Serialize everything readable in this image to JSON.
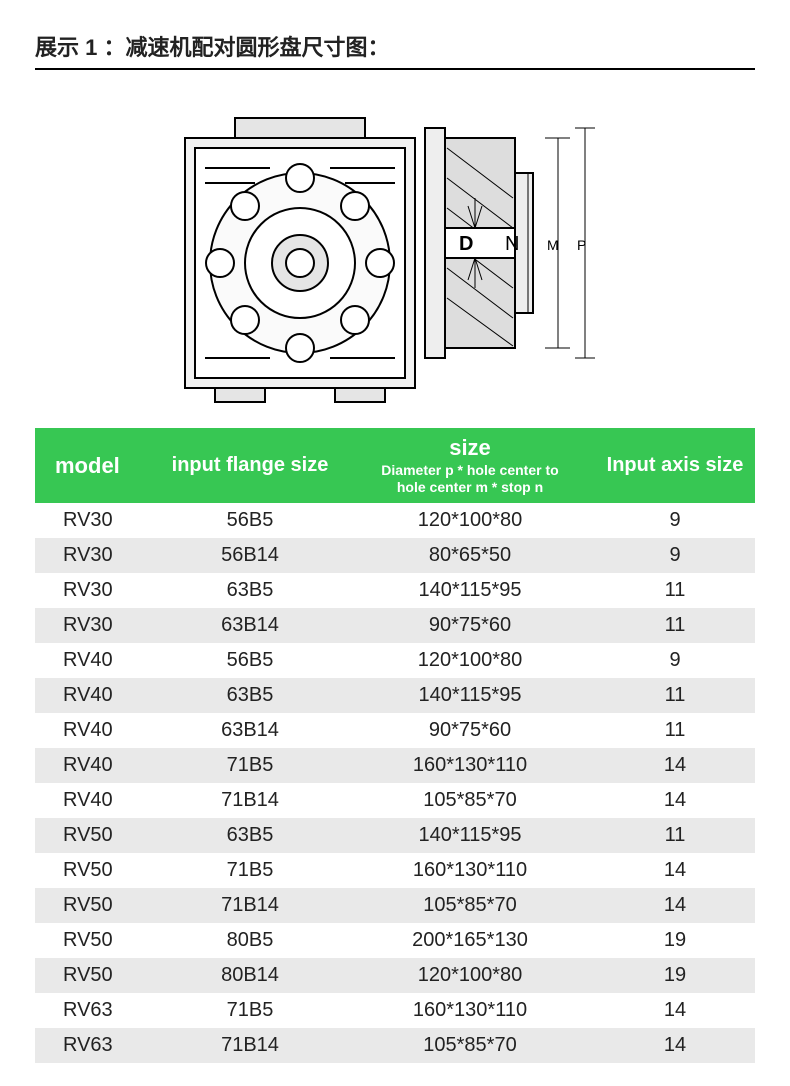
{
  "title": "展示 1 ：减速机配对圆形盘尺寸图：",
  "diagram": {
    "labels": {
      "D": "D",
      "N": "N",
      "M": "M",
      "P": "P"
    },
    "stroke": "#000000",
    "fill_light": "#f2f2f2",
    "fill_mid": "#d9d9d9"
  },
  "table": {
    "header_bg": "#37c753",
    "header_fg": "#ffffff",
    "row_odd_bg": "#ffffff",
    "row_even_bg": "#e9e9e9",
    "columns": {
      "model": "model",
      "flange": "input flange size",
      "size_main": "size",
      "size_sub1": "Diameter p * hole center to",
      "size_sub2": "hole center m * stop n",
      "axis": "Input axis size"
    },
    "col_widths": [
      "120px",
      "190px",
      "250px",
      "160px"
    ],
    "rows": [
      {
        "model": "RV30",
        "flange": "56B5",
        "size": "120*100*80",
        "axis": "9"
      },
      {
        "model": "RV30",
        "flange": "56B14",
        "size": "80*65*50",
        "axis": "9"
      },
      {
        "model": "RV30",
        "flange": "63B5",
        "size": "140*115*95",
        "axis": "11"
      },
      {
        "model": "RV30",
        "flange": "63B14",
        "size": "90*75*60",
        "axis": "11"
      },
      {
        "model": "RV40",
        "flange": "56B5",
        "size": "120*100*80",
        "axis": "9"
      },
      {
        "model": "RV40",
        "flange": "63B5",
        "size": "140*115*95",
        "axis": "11"
      },
      {
        "model": "RV40",
        "flange": "63B14",
        "size": "90*75*60",
        "axis": "11"
      },
      {
        "model": "RV40",
        "flange": "71B5",
        "size": "160*130*110",
        "axis": "14"
      },
      {
        "model": "RV40",
        "flange": "71B14",
        "size": "105*85*70",
        "axis": "14"
      },
      {
        "model": "RV50",
        "flange": "63B5",
        "size": "140*115*95",
        "axis": "11"
      },
      {
        "model": "RV50",
        "flange": "71B5",
        "size": "160*130*110",
        "axis": "14"
      },
      {
        "model": "RV50",
        "flange": "71B14",
        "size": "105*85*70",
        "axis": "14"
      },
      {
        "model": "RV50",
        "flange": "80B5",
        "size": "200*165*130",
        "axis": "19"
      },
      {
        "model": "RV50",
        "flange": "80B14",
        "size": "120*100*80",
        "axis": "19"
      },
      {
        "model": "RV63",
        "flange": "71B5",
        "size": "160*130*110",
        "axis": "14"
      },
      {
        "model": "RV63",
        "flange": "71B14",
        "size": "105*85*70",
        "axis": "14"
      }
    ]
  }
}
